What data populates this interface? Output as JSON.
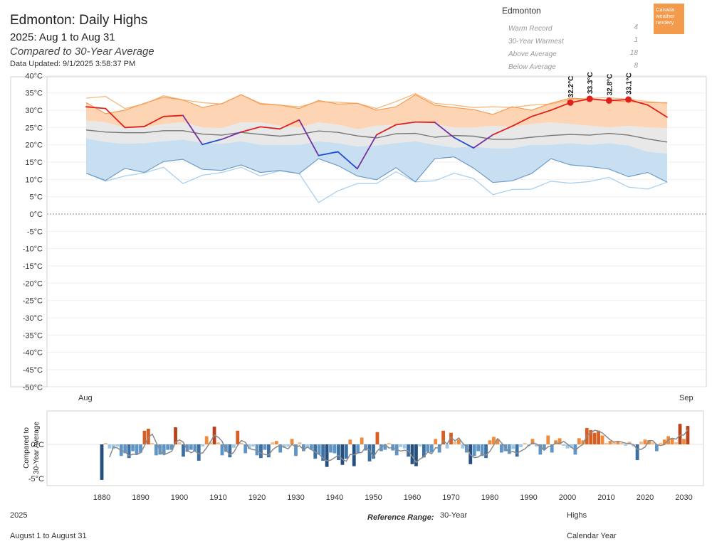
{
  "header": {
    "title": "Edmonton: Daily Highs",
    "subtitle": "2025: Aug 1 to Aug 31",
    "compare": "Compared to 30-Year Average",
    "updated": "Data Updated: 9/1/2025 3:58:37 PM"
  },
  "summary": {
    "station": "Edmonton",
    "stats": [
      {
        "label": "Warm Record",
        "value": "4"
      },
      {
        "label": "30-Year Warmest",
        "value": "1"
      },
      {
        "label": "Above Average",
        "value": "18"
      },
      {
        "label": "Below Average",
        "value": "8"
      }
    ]
  },
  "logo": {
    "line1": "Canada",
    "line2": "weather",
    "line3": "nerdery"
  },
  "colors": {
    "above_band": "#fdd5b4",
    "normal_band": "#e8e8e8",
    "below_band": "#c8dff1",
    "current_warm": "#e0201b",
    "current_cool": "#1f4fd6",
    "average": "#777777",
    "record_high": "#f7b87a",
    "record_low": "#a9d0ee",
    "p90": "#f39c55",
    "p10": "#6d9bc9"
  },
  "chart_data": [
    {
      "type": "line",
      "title": "Edmonton: Daily Highs",
      "x_axis_labels": [
        "Aug",
        "Sep"
      ],
      "days": [
        1,
        2,
        3,
        4,
        5,
        6,
        7,
        8,
        9,
        10,
        11,
        12,
        13,
        14,
        15,
        16,
        17,
        18,
        19,
        20,
        21,
        22,
        23,
        24,
        25,
        26,
        27,
        28,
        29,
        30,
        31
      ],
      "ylim": [
        -50,
        40
      ],
      "yticks": [
        40,
        35,
        30,
        25,
        20,
        15,
        10,
        5,
        0,
        -5,
        -10,
        -15,
        -20,
        -25,
        -30,
        -35,
        -40,
        -45,
        -50
      ],
      "ytick_labels": [
        "40°C",
        "35°C",
        "30°C",
        "25°C",
        "20°C",
        "15°C",
        "10°C",
        "5°C",
        "0°C",
        "-5°C",
        "-10°C",
        "-15°C",
        "-20°C",
        "-25°C",
        "-30°C",
        "-35°C",
        "-40°C",
        "-45°C",
        "-50°C"
      ],
      "series": [
        {
          "name": "Record high",
          "values": [
            33.5,
            34.0,
            30.5,
            31.8,
            34.2,
            33.0,
            32.2,
            31.8,
            34.5,
            32.0,
            31.5,
            31.0,
            32.5,
            32.3,
            32.0,
            30.5,
            32.5,
            34.8,
            32.0,
            31.5,
            30.8,
            31.0,
            30.8,
            31.5,
            31.8,
            33.0,
            33.5,
            33.6,
            33.2,
            32.5,
            32.0
          ]
        },
        {
          "name": "Above normal",
          "values": [
            32.2,
            29.0,
            30.0,
            32.0,
            33.8,
            33.0,
            30.8,
            31.9,
            34.5,
            31.8,
            31.5,
            30.5,
            32.8,
            31.8,
            32.0,
            30.0,
            31.0,
            34.5,
            31.5,
            30.8,
            30.2,
            28.8,
            31.0,
            30.0,
            32.0,
            33.5,
            33.2,
            32.8,
            32.5,
            32.2,
            32.2
          ]
        },
        {
          "name": "Upper normal",
          "values": [
            27.0,
            26.5,
            25.0,
            25.0,
            26.0,
            26.5,
            25.0,
            24.8,
            26.5,
            26.5,
            25.5,
            25.0,
            26.5,
            25.8,
            24.5,
            25.5,
            25.8,
            27.0,
            26.0,
            25.0,
            25.0,
            25.5,
            25.2,
            26.0,
            26.5,
            26.0,
            25.5,
            25.0,
            25.5,
            25.0,
            24.8
          ]
        },
        {
          "name": "Average",
          "values": [
            24.3,
            23.7,
            23.5,
            23.5,
            24.1,
            24.1,
            23.1,
            22.8,
            23.6,
            23.0,
            22.5,
            23.0,
            24.0,
            23.6,
            22.6,
            22.0,
            23.2,
            23.3,
            22.2,
            22.7,
            22.5,
            21.6,
            21.6,
            22.2,
            22.7,
            23.0,
            22.8,
            23.3,
            22.8,
            21.7,
            20.8
          ]
        },
        {
          "name": "Lower normal",
          "values": [
            21.8,
            20.8,
            20.3,
            20.5,
            21.0,
            21.5,
            20.5,
            20.3,
            21.0,
            20.0,
            20.0,
            20.0,
            21.0,
            20.5,
            19.5,
            19.8,
            20.5,
            21.0,
            20.0,
            19.2,
            19.5,
            19.0,
            19.0,
            20.0,
            20.0,
            20.5,
            20.0,
            20.5,
            19.8,
            18.0,
            17.5
          ]
        },
        {
          "name": "Below normal",
          "values": [
            11.8,
            9.7,
            13.2,
            12.0,
            15.2,
            15.8,
            12.9,
            12.6,
            14.2,
            12.0,
            12.6,
            11.7,
            16.0,
            14.0,
            11.0,
            9.9,
            13.4,
            9.3,
            16.0,
            16.5,
            13.3,
            9.1,
            9.6,
            11.7,
            16.0,
            14.2,
            13.7,
            13.0,
            10.8,
            12.0,
            9.2
          ]
        },
        {
          "name": "Record low",
          "values": [
            11.8,
            9.5,
            11.0,
            11.9,
            13.5,
            8.8,
            11.2,
            12.0,
            13.5,
            11.0,
            12.5,
            11.7,
            3.3,
            6.7,
            8.8,
            8.8,
            12.2,
            9.3,
            9.6,
            11.8,
            10.3,
            5.6,
            7.1,
            7.2,
            9.5,
            8.9,
            9.4,
            10.6,
            7.8,
            7.2,
            9.2
          ]
        },
        {
          "name": "2025 daily high",
          "values": [
            31.0,
            30.5,
            25.0,
            25.3,
            28.2,
            28.5,
            20.1,
            21.6,
            23.7,
            25.2,
            24.6,
            27.2,
            16.9,
            18.0,
            13.1,
            22.9,
            25.8,
            26.6,
            26.5,
            22.1,
            19.1,
            22.9,
            25.4,
            28.2,
            30.0,
            32.2,
            33.3,
            32.8,
            33.1,
            31.5,
            28.0
          ]
        }
      ],
      "record_labels": [
        {
          "day": 26,
          "text": "32.2°C"
        },
        {
          "day": 27,
          "text": "33.3°C"
        },
        {
          "day": 28,
          "text": "32.8°C"
        },
        {
          "day": 29,
          "text": "33.1°C"
        }
      ]
    },
    {
      "type": "bar",
      "ylabel_line1": "Compared to",
      "ylabel_line2": "30-Year Average",
      "ytick_labels": [
        "0°C",
        "-5°C"
      ],
      "yticks": [
        0,
        -5
      ],
      "ylim": [
        -5.5,
        4.3
      ],
      "xticks": [
        1880,
        1890,
        1900,
        1910,
        1920,
        1930,
        1940,
        1950,
        1960,
        1970,
        1980,
        1990,
        2000,
        2010,
        2020,
        2030
      ],
      "x_start": 1880,
      "values": [
        -5.2,
        0.2,
        -0.6,
        -0.7,
        -0.3,
        -1.7,
        -1.3,
        -2.0,
        -1.0,
        -1.5,
        -1.2,
        2.0,
        2.3,
        0.2,
        -1.6,
        -1.5,
        -1.5,
        -0.8,
        -0.8,
        2.5,
        0.3,
        -1.8,
        -1.1,
        -0.8,
        -1.0,
        -2.4,
        -0.3,
        1.2,
        0.3,
        2.6,
        0.3,
        -1.6,
        -1.1,
        -1.9,
        -0.5,
        2.0,
        0.2,
        -1.3,
        -0.7,
        -0.3,
        -1.6,
        -2.0,
        -0.8,
        -1.9,
        0.3,
        0.5,
        -1.2,
        -0.5,
        -0.3,
        0.8,
        -1.7,
        0.3,
        -1.0,
        -0.5,
        -0.8,
        -2.1,
        -1.5,
        -2.4,
        -3.3,
        -1.2,
        -1.3,
        -2.3,
        -3.0,
        -2.1,
        0.7,
        -3.2,
        -1.3,
        1.0,
        -0.9,
        -2.5,
        -2.1,
        1.8,
        -1.0,
        -0.8,
        0.2,
        -0.9,
        -1.6,
        -0.4,
        -0.6,
        -1.8,
        -2.9,
        -3.2,
        -0.3,
        -1.9,
        -1.1,
        -1.2,
        0.8,
        -1.2,
        2.0,
        -0.6,
        1.7,
        0.4,
        0.7,
        -0.6,
        -1.2,
        -2.9,
        -1.7,
        -1.0,
        -1.7,
        -2.0,
        0.6,
        1.1,
        0.8,
        -1.2,
        -1.0,
        -1.4,
        -0.7,
        -1.8,
        -0.4,
        0.2,
        -0.3,
        0.8,
        -0.3,
        -1.5,
        -0.8,
        1.3,
        -1.2,
        0.6,
        0.9,
        -0.2,
        -0.6,
        -0.5,
        -1.5,
        0.9,
        0.6,
        2.4,
        2.1,
        1.7,
        2.0,
        1.3,
        0.2,
        0.5,
        0.3,
        0.5,
        0.2,
        -0.2,
        0.4,
        -0.3,
        -2.3,
        0.4,
        0.7,
        0.6,
        0.3,
        -1.0,
        0.2,
        0.7,
        1.2,
        0.8,
        0.3,
        3.0,
        0.8,
        2.7
      ]
    }
  ],
  "footer": {
    "year": "2025",
    "period": "August 1 to August 31",
    "ref_label": "Reference Range:",
    "ref_value": "30-Year",
    "measure": "Highs",
    "calendar": "Calendar Year"
  }
}
